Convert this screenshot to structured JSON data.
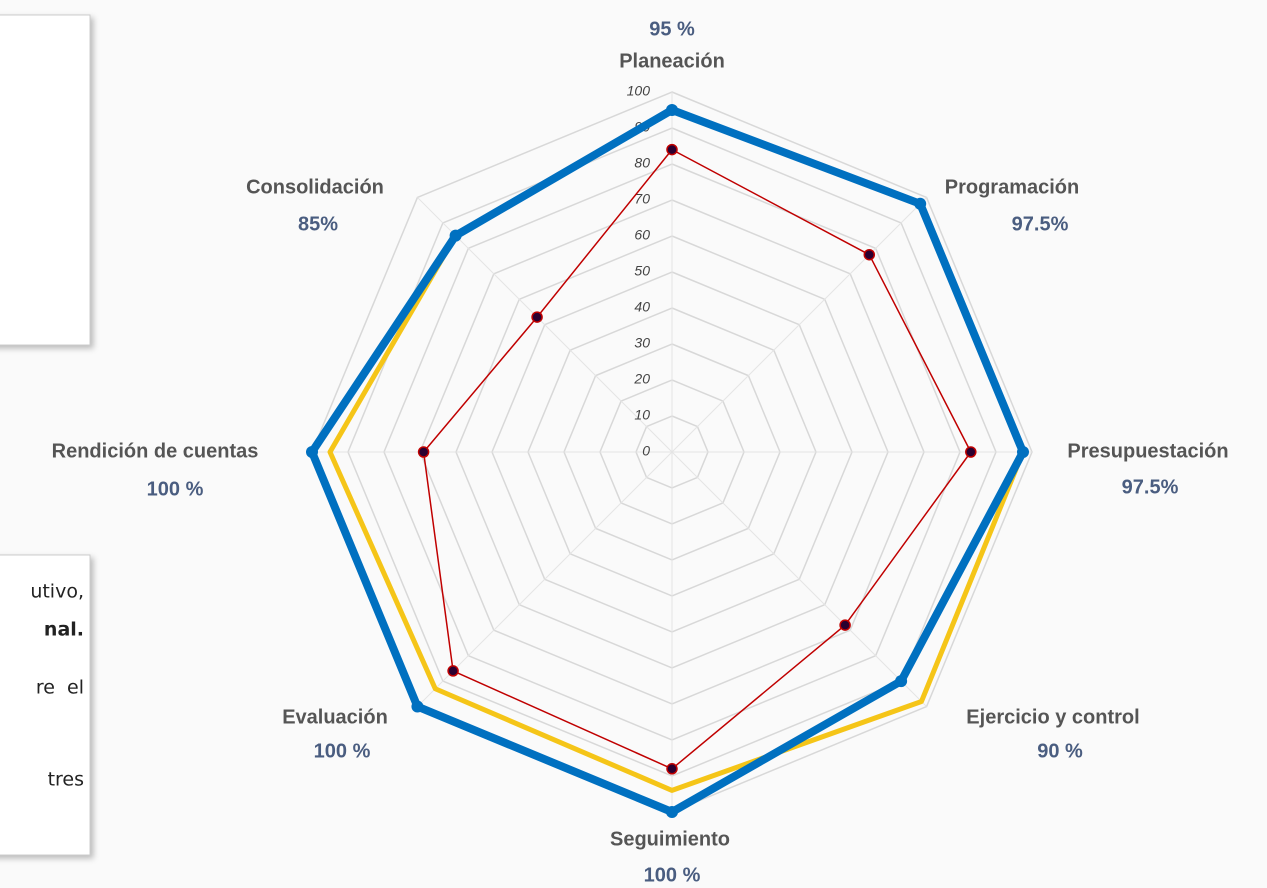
{
  "chart_data": {
    "type": "radar",
    "categories": [
      "Planeación",
      "Programación",
      "Presupuestación",
      "Ejercicio y control",
      "Seguimiento",
      "Evaluación",
      "Rendición de cuentas",
      "Consolidación"
    ],
    "series": [
      {
        "color": "#0070c0",
        "values": [
          95,
          97.5,
          97.5,
          90,
          100,
          100,
          100,
          85
        ],
        "value_labels": [
          "95 %",
          "97.5%",
          "97.5%",
          "90 %",
          "100 %",
          "100 %",
          "100 %",
          "85%"
        ]
      },
      {
        "color": "#f5c518",
        "values": [
          95,
          97.5,
          97.5,
          98,
          94,
          93,
          95,
          85
        ]
      },
      {
        "color": "#c00000",
        "values": [
          84,
          77.5,
          83,
          68,
          88,
          86,
          69,
          53
        ]
      }
    ],
    "ylim": [
      0,
      100
    ],
    "yticks": [
      0,
      10,
      20,
      30,
      40,
      50,
      60,
      70,
      80,
      90,
      100
    ],
    "grid": true
  },
  "side_text": [
    "utivo,",
    "nal.",
    "re  el",
    "tres"
  ]
}
